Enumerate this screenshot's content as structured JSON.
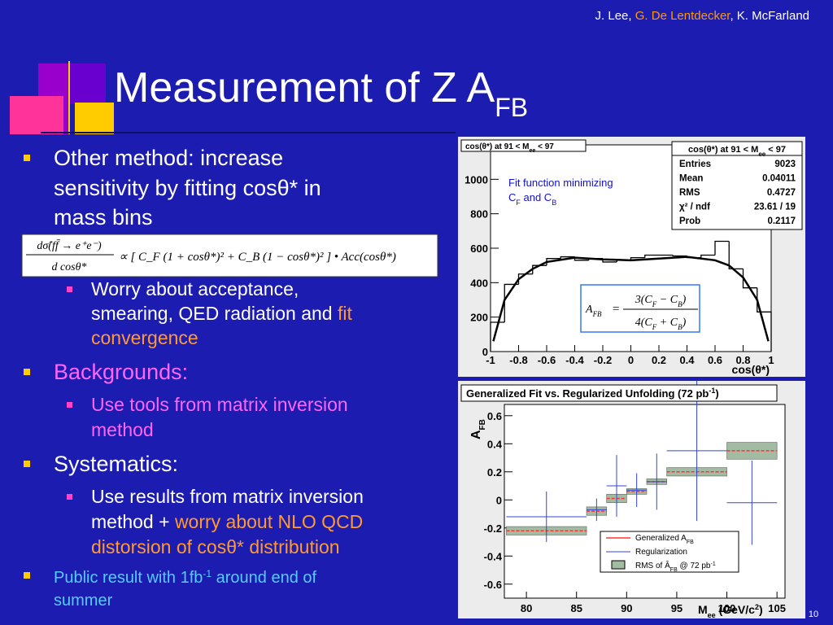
{
  "header": {
    "authors": [
      "J. Lee, ",
      "G. De Lentdecker",
      ", K. McFarland"
    ],
    "title": "Measurement of Z A",
    "title_sub": "FB"
  },
  "bullets": [
    {
      "level": 1,
      "color": "#ffffff",
      "lines": [
        [
          {
            "text": "Other method: increase"
          }
        ],
        [
          {
            "text": "sensitivity by fitting cosθ* in"
          }
        ],
        [
          {
            "text": "mass bins"
          }
        ]
      ]
    },
    {
      "level": 2,
      "color": "#ffffff",
      "lines": [
        [
          {
            "text": "Worry about acceptance,"
          }
        ],
        [
          {
            "text": "smearing, QED radiation and "
          },
          {
            "text": "fit",
            "color": "#ff9933"
          }
        ],
        [
          {
            "text": "convergence",
            "color": "#ff9933"
          }
        ]
      ]
    },
    {
      "level": 1,
      "color": "#ff66ff",
      "lines": [
        [
          {
            "text": "Backgrounds:"
          }
        ]
      ]
    },
    {
      "level": 2,
      "color": "#ff66ff",
      "lines": [
        [
          {
            "text": "Use tools from matrix inversion"
          }
        ],
        [
          {
            "text": "method"
          }
        ]
      ]
    },
    {
      "level": 1,
      "color": "#ffffff",
      "lines": [
        [
          {
            "text": "Systematics:"
          }
        ]
      ]
    },
    {
      "level": 2,
      "color": "#ffffff",
      "lines": [
        [
          {
            "text": "Use results from matrix inversion"
          }
        ],
        [
          {
            "text": "method + "
          },
          {
            "text": "worry about NLO QCD",
            "color": "#ff9933"
          }
        ],
        [
          {
            "text": "distorsion of cosθ* distribution",
            "color": "#ff9933"
          }
        ]
      ]
    },
    {
      "level": 1,
      "small": true,
      "color": "#55ccff",
      "lines": [
        [
          {
            "text": "Public result with 1fb"
          },
          {
            "text": "-1",
            "script": "super"
          },
          {
            "text": " around end of"
          }
        ],
        [
          {
            "text": "summer"
          }
        ]
      ]
    }
  ],
  "formula": {
    "numerator": "dσ̂(ff̄ → e⁺e⁻)",
    "denominator": "d cosθ*",
    "body": "∝ [ C_F (1 + cosθ*)² + C_B (1 − cosθ*)² ] • Acc(cosθ*)"
  },
  "plot1": {
    "type": "histogram",
    "title": [
      "cos(θ*) at 91 < M",
      "ee",
      " < 97"
    ],
    "stats": {
      "name": [
        "cos(θ*) at 91 < M",
        "ee",
        " < 97"
      ],
      "rows": [
        [
          "Entries",
          "9023"
        ],
        [
          "Mean",
          "0.04011"
        ],
        [
          "RMS",
          "0.4727"
        ],
        [
          "χ² / ndf",
          "23.61 / 19"
        ],
        [
          "Prob",
          "0.2117"
        ]
      ]
    },
    "annotation": {
      "line1": "Fit function minimizing",
      "line2": [
        "C",
        "F",
        " and C",
        "B"
      ]
    },
    "afb_formula": {
      "lhs": "A",
      "lhs_sub": "FB",
      "eq": "=",
      "num": [
        "3(C",
        "F",
        " − C",
        "B",
        ")"
      ],
      "den": [
        "4(C",
        "F",
        " + C",
        "B",
        ")"
      ]
    },
    "xlabel": "cos(θ*)",
    "bins": [
      -1,
      -0.9,
      -0.8,
      -0.7,
      -0.6,
      -0.5,
      -0.4,
      -0.3,
      -0.2,
      -0.1,
      0,
      0.1,
      0.2,
      0.3,
      0.4,
      0.5,
      0.6,
      0.7,
      0.8,
      0.9,
      1
    ],
    "values": [
      170,
      390,
      450,
      500,
      540,
      550,
      530,
      540,
      520,
      530,
      545,
      560,
      560,
      555,
      545,
      560,
      640,
      480,
      370,
      230
    ],
    "fit": {
      "x": [
        -0.98,
        -0.9,
        -0.8,
        -0.7,
        -0.6,
        -0.4,
        -0.2,
        0,
        0.2,
        0.4,
        0.6,
        0.7,
        0.8,
        0.9,
        0.98
      ],
      "y": [
        60,
        300,
        420,
        480,
        520,
        545,
        535,
        530,
        540,
        550,
        530,
        500,
        430,
        300,
        60
      ]
    },
    "xlim": [
      -1,
      1
    ],
    "ylim": [
      0,
      1200
    ],
    "xticks": [
      -1,
      -0.8,
      -0.6,
      -0.4,
      -0.2,
      0,
      0.2,
      0.4,
      0.6,
      0.8,
      1
    ],
    "yticks": [
      0,
      200,
      400,
      600,
      800,
      1000
    ]
  },
  "plot2": {
    "type": "binned",
    "title": [
      "Generalized Fit vs. Regularized Unfolding (72 pb",
      "-1",
      ")"
    ],
    "ylabel": [
      "A",
      "FB"
    ],
    "xlabel": [
      "M",
      "ee",
      " (GeV/c",
      "2",
      ")"
    ],
    "bins": [
      78,
      86,
      88,
      90,
      92,
      94,
      100,
      105
    ],
    "series": [
      {
        "name": [
          "Generalized A",
          "FB"
        ],
        "color": "#ff3333",
        "values": [
          -0.22,
          -0.08,
          0.01,
          0.06,
          0.13,
          0.2,
          0.35
        ],
        "rms": [
          0.03,
          0.03,
          0.03,
          0.02,
          0.02,
          0.03,
          0.06
        ],
        "rms_color": "#a3bba3"
      },
      {
        "name": [
          "Regularization"
        ],
        "color": "#3344dd",
        "values": [
          -0.12,
          -0.07,
          0.1,
          0.07,
          0.13,
          0.35,
          -0.02
        ],
        "errors": [
          0.18,
          0.08,
          0.22,
          0.12,
          0.2,
          0.5,
          0.3
        ]
      }
    ],
    "rms_legend": [
      "RMS of ",
      "Â",
      "FB",
      " @ 72 pb",
      "-1"
    ],
    "xlim": [
      77.8,
      105.8
    ],
    "ylim": [
      -0.7,
      0.68
    ],
    "xticks": [
      80,
      85,
      90,
      95,
      100,
      105
    ],
    "yticks": [
      -0.6,
      -0.4,
      -0.2,
      0,
      0.2,
      0.4,
      0.6
    ]
  },
  "page_number": "10"
}
